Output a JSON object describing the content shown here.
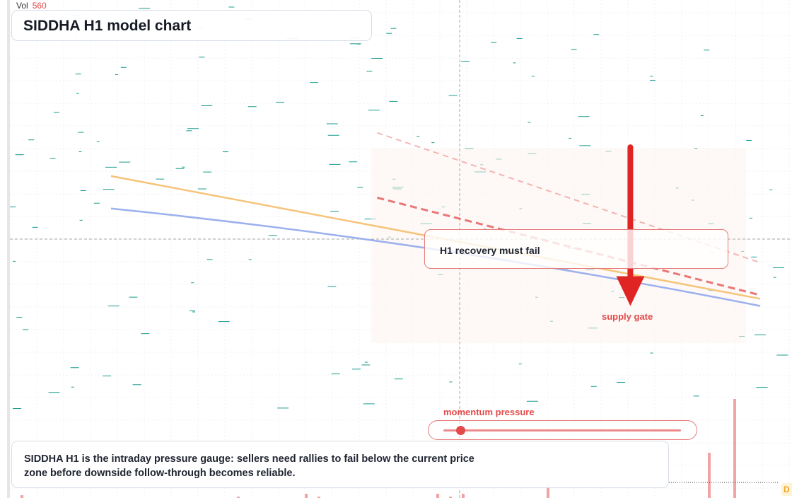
{
  "header": {
    "title": "SIDDHA H1 model chart",
    "volume_label": "Vol",
    "volume_value": "560"
  },
  "annotations": {
    "recovery_note": "H1 recovery must fail",
    "supply_label": "supply gate",
    "gauge_label": "momentum pressure",
    "summary": "SIDDHA H1 is the intraday pressure gauge: sellers need rallies to fail below the current price zone before downside follow-through becomes reliable.",
    "edge_tag": "D"
  },
  "gauge": {
    "level": 0.07
  },
  "colors": {
    "candle": "#1a9c8c",
    "orange_line": "#f5c47a",
    "blue_line": "#9cb0ee",
    "red_dashed": "#e34a4a",
    "arrow": "#e02424",
    "volume_bar": "#f0a4a4"
  },
  "chart_data": {
    "type": "line",
    "series": [
      {
        "values": [
          [
            0,
            61
          ],
          [
            100,
            27
          ]
        ]
      },
      {
        "values": [
          [
            0,
            52
          ],
          [
            100,
            25
          ]
        ]
      },
      {
        "values": [
          [
            41,
            55
          ],
          [
            100,
            28
          ]
        ]
      },
      {
        "values": [
          [
            41,
            73
          ],
          [
            100,
            37
          ]
        ]
      }
    ],
    "arrow": {
      "from": [
        80,
        69
      ],
      "to": [
        80,
        25
      ]
    },
    "ylim": [
      0,
      100
    ],
    "xlim": [
      -15,
      100
    ],
    "grid": true
  }
}
